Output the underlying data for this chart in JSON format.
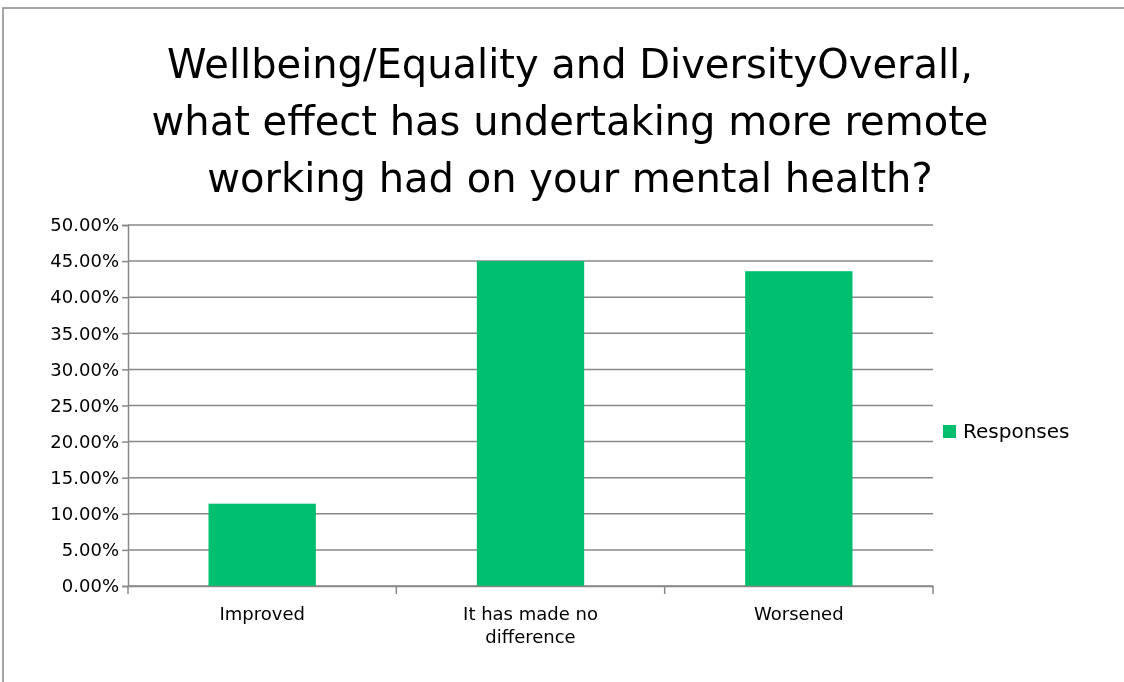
{
  "chart_data": {
    "type": "bar",
    "title": "Wellbeing/Equality and DiversityOverall, what effect has undertaking more remote working had on your mental health?",
    "categories": [
      "Improved",
      "It has made no difference",
      "Worsened"
    ],
    "series": [
      {
        "name": "Responses",
        "color": "#00bf6f",
        "values": [
          11.4,
          45.0,
          43.6
        ]
      }
    ],
    "ylim": [
      0,
      50
    ],
    "yticks": [
      {
        "value": 0,
        "label": "0.00%"
      },
      {
        "value": 5,
        "label": "5.00%"
      },
      {
        "value": 10,
        "label": "10.00%"
      },
      {
        "value": 15,
        "label": "15.00%"
      },
      {
        "value": 20,
        "label": "20.00%"
      },
      {
        "value": 25,
        "label": "25.00%"
      },
      {
        "value": 30,
        "label": "30.00%"
      },
      {
        "value": 35,
        "label": "35.00%"
      },
      {
        "value": 40,
        "label": "40.00%"
      },
      {
        "value": 45,
        "label": "45.00%"
      },
      {
        "value": 50,
        "label": "50.00%"
      }
    ],
    "grid": "y",
    "legend": "right"
  }
}
